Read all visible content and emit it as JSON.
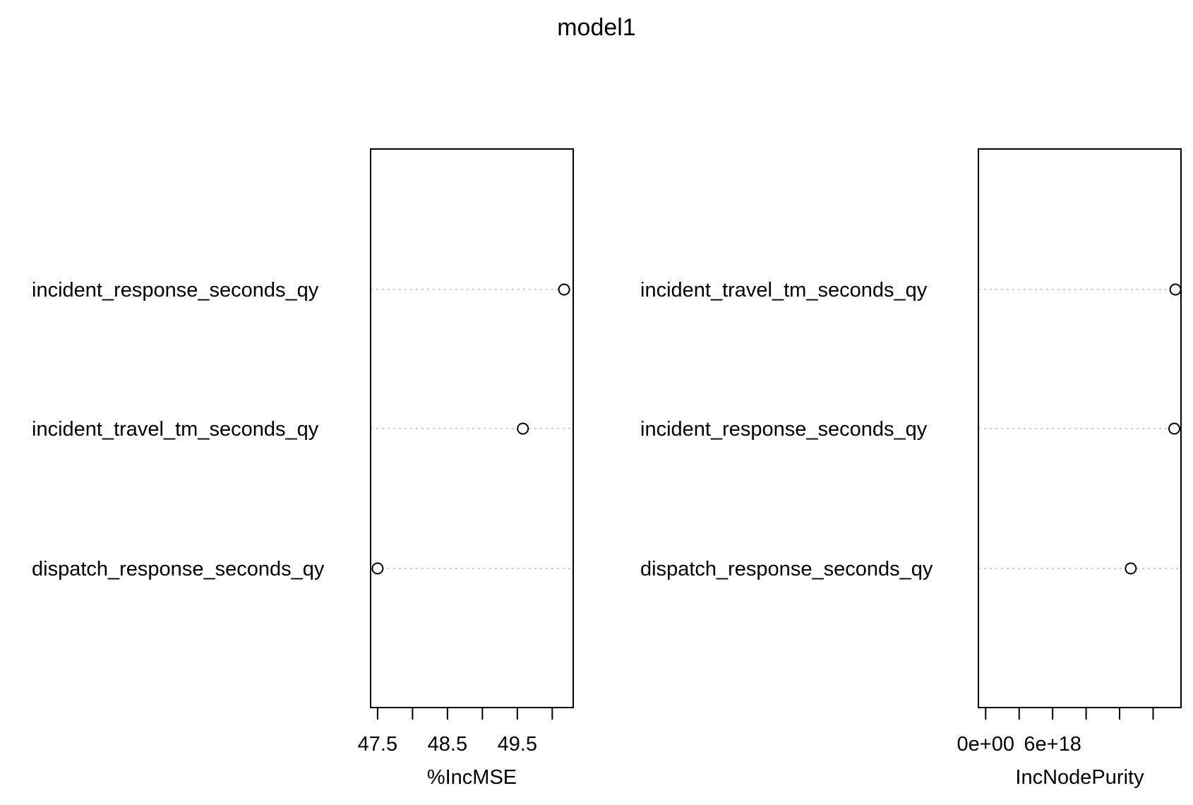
{
  "title": "model1",
  "chart_data": [
    {
      "type": "scatter",
      "xlabel": "%IncMSE",
      "categories": [
        "incident_response_seconds_qy",
        "incident_travel_tm_seconds_qy",
        "dispatch_response_seconds_qy"
      ],
      "values": [
        50.17,
        49.58,
        47.5
      ],
      "xlim": [
        47.4,
        50.3
      ],
      "ticks": [
        47.5,
        48.0,
        48.5,
        49.0,
        49.5,
        50.0
      ],
      "tick_labels": [
        "47.5",
        "",
        "48.5",
        "",
        "49.5",
        ""
      ],
      "grid": false,
      "reference_lines": "dotted"
    },
    {
      "type": "scatter",
      "xlabel": "IncNodePurity",
      "categories": [
        "incident_travel_tm_seconds_qy",
        "incident_response_seconds_qy",
        "dispatch_response_seconds_qy"
      ],
      "values": [
        1.7e+19,
        1.69e+19,
        1.3e+19
      ],
      "xlim": [
        -6.5e+17,
        1.75e+19
      ],
      "ticks": [
        0,
        3e+18,
        6e+18,
        9e+18,
        1.2e+19,
        1.5e+19
      ],
      "tick_labels": [
        "0e+00",
        "",
        "6e+18",
        "",
        "",
        ""
      ],
      "grid": false,
      "reference_lines": "dotted"
    }
  ]
}
